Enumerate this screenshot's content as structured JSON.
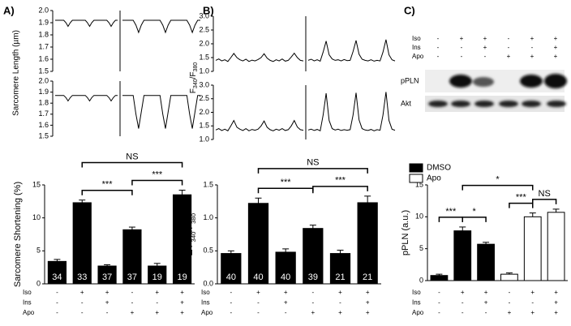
{
  "panels": [
    "A)",
    "B)",
    "C)"
  ],
  "conditions": [
    {
      "label": "Iso",
      "marks": [
        "-",
        "+",
        "+",
        "-",
        "+",
        "+"
      ]
    },
    {
      "label": "Ins",
      "marks": [
        "-",
        "-",
        "+",
        "-",
        "-",
        "+"
      ]
    },
    {
      "label": "Apo",
      "marks": [
        "-",
        "-",
        "-",
        "+",
        "+",
        "+"
      ]
    }
  ],
  "blot": {
    "labels": [
      "pPLN",
      "Akt"
    ]
  },
  "chart_data": [
    {
      "type": "line",
      "ylabel": "Sarcomere Length (µm)",
      "ylim": [
        1.5,
        2.0
      ],
      "yticks": [
        1.5,
        1.6,
        1.7,
        1.8,
        1.9,
        {
          "value": 2.0,
          "label": "2.0"
        }
      ],
      "series": [
        {
          "color": "#000000",
          "values": [
            1.92,
            1.92,
            1.92,
            1.92,
            1.92,
            1.9,
            1.87,
            1.9,
            1.92,
            1.92,
            1.92,
            1.92,
            1.92,
            1.92,
            1.92,
            1.9,
            1.87,
            1.9,
            1.92,
            1.92,
            1.92,
            1.92,
            1.92,
            1.92,
            1.92,
            1.9,
            1.87,
            1.9,
            1.92,
            1.92
          ]
        },
        {
          "color": "#000000",
          "values": [
            1.92,
            1.92,
            1.92,
            1.92,
            1.92,
            1.88,
            1.82,
            1.88,
            1.92,
            1.92,
            1.92,
            1.92,
            1.92,
            1.92,
            1.92,
            1.88,
            1.82,
            1.88,
            1.92,
            1.92,
            1.92,
            1.92,
            1.92,
            1.92,
            1.92,
            1.88,
            1.82,
            1.88,
            1.92,
            1.92
          ]
        }
      ]
    },
    {
      "type": "line",
      "ylim": [
        1.5,
        2.0
      ],
      "yticks": [
        1.5,
        1.6,
        1.7,
        1.8,
        1.9,
        {
          "value": 2.0,
          "label": "2.0"
        }
      ],
      "series": [
        {
          "color": "#000000",
          "values": [
            1.87,
            1.87,
            1.87,
            1.87,
            1.87,
            1.85,
            1.82,
            1.85,
            1.87,
            1.87,
            1.87,
            1.87,
            1.87,
            1.87,
            1.87,
            1.85,
            1.82,
            1.85,
            1.87,
            1.87,
            1.87,
            1.87,
            1.87,
            1.87,
            1.87,
            1.85,
            1.82,
            1.85,
            1.87,
            1.87
          ]
        },
        {
          "color": "#000000",
          "values": [
            1.87,
            1.87,
            1.87,
            1.87,
            1.87,
            1.7,
            1.57,
            1.72,
            1.87,
            1.87,
            1.87,
            1.87,
            1.87,
            1.87,
            1.87,
            1.7,
            1.57,
            1.72,
            1.87,
            1.87,
            1.87,
            1.87,
            1.87,
            1.87,
            1.87,
            1.7,
            1.57,
            1.72,
            1.87,
            1.87
          ]
        }
      ]
    },
    {
      "type": "line",
      "ylabel_parts": [
        "F",
        "340",
        "/F",
        "380"
      ],
      "ylim": [
        1.0,
        3.0
      ],
      "yticks": [
        {
          "value": 1.0,
          "label": "1.0"
        },
        1.5,
        {
          "value": 2.0,
          "label": "2.0"
        },
        2.5,
        {
          "value": 3.0,
          "label": "3.0"
        }
      ],
      "series": [
        {
          "color": "#000000",
          "values": [
            1.4,
            1.45,
            1.38,
            1.42,
            1.36,
            1.5,
            1.65,
            1.5,
            1.42,
            1.38,
            1.44,
            1.36,
            1.41,
            1.38,
            1.43,
            1.5,
            1.64,
            1.48,
            1.4,
            1.36,
            1.42,
            1.38,
            1.45,
            1.37,
            1.4,
            1.52,
            1.66,
            1.5,
            1.4,
            1.38
          ]
        },
        {
          "color": "#000000",
          "values": [
            1.4,
            1.44,
            1.38,
            1.42,
            1.37,
            1.7,
            2.1,
            1.6,
            1.45,
            1.4,
            1.42,
            1.38,
            1.43,
            1.39,
            1.4,
            1.72,
            2.12,
            1.62,
            1.44,
            1.4,
            1.38,
            1.42,
            1.37,
            1.4,
            1.38,
            1.7,
            2.15,
            1.6,
            1.42,
            1.38
          ]
        }
      ]
    },
    {
      "type": "line",
      "ylim": [
        1.0,
        3.0
      ],
      "yticks": [
        {
          "value": 1.0,
          "label": "1.0"
        },
        1.5,
        {
          "value": 2.0,
          "label": "2.0"
        },
        2.5,
        {
          "value": 3.0,
          "label": "3.0"
        }
      ],
      "series": [
        {
          "color": "#000000",
          "values": [
            1.35,
            1.4,
            1.33,
            1.38,
            1.32,
            1.5,
            1.7,
            1.45,
            1.38,
            1.33,
            1.4,
            1.32,
            1.37,
            1.34,
            1.38,
            1.5,
            1.68,
            1.45,
            1.36,
            1.32,
            1.38,
            1.34,
            1.4,
            1.33,
            1.36,
            1.5,
            1.7,
            1.46,
            1.36,
            1.34
          ]
        },
        {
          "color": "#000000",
          "values": [
            1.35,
            1.38,
            1.33,
            1.37,
            1.32,
            1.9,
            2.7,
            1.7,
            1.4,
            1.35,
            1.38,
            1.33,
            1.36,
            1.34,
            1.36,
            1.9,
            2.72,
            1.72,
            1.4,
            1.35,
            1.33,
            1.37,
            1.32,
            1.36,
            1.34,
            1.9,
            2.75,
            1.7,
            1.38,
            1.34
          ]
        }
      ]
    },
    {
      "type": "bar",
      "ylabel": "Sarcomere Shortening (%)",
      "ylim": [
        0,
        15
      ],
      "yticks": [
        0,
        5,
        10,
        15
      ],
      "color": "#000000",
      "values": [
        3.4,
        12.3,
        2.7,
        8.2,
        2.7,
        13.5
      ],
      "errors": [
        0.3,
        0.4,
        0.2,
        0.4,
        0.4,
        0.7
      ],
      "n": [
        34,
        33,
        37,
        37,
        19,
        19
      ],
      "brackets": [
        {
          "between": [
            1,
            3
          ],
          "label": "***"
        },
        {
          "between": [
            3,
            5
          ],
          "label": "***"
        },
        {
          "between": [
            1,
            5
          ],
          "label": "NS"
        }
      ]
    },
    {
      "type": "bar",
      "ylabel_parts": [
        "Δ F",
        "340",
        "/F",
        "380"
      ],
      "ylim": [
        0,
        1.5
      ],
      "yticks": [
        {
          "value": 0,
          "label": "0.0"
        },
        0.5,
        {
          "value": 1.0,
          "label": "1.0"
        },
        1.5
      ],
      "color": "#000000",
      "values": [
        0.46,
        1.22,
        0.48,
        0.84,
        0.46,
        1.23
      ],
      "errors": [
        0.04,
        0.08,
        0.05,
        0.05,
        0.05,
        0.1
      ],
      "n": [
        40,
        40,
        40,
        39,
        21,
        21
      ],
      "brackets": [
        {
          "between": [
            1,
            3
          ],
          "label": "***"
        },
        {
          "between": [
            3,
            5
          ],
          "label": "***"
        },
        {
          "between": [
            1,
            5
          ],
          "label": "NS"
        }
      ]
    },
    {
      "type": "bar",
      "ylabel": "pPLN (a.u.)",
      "ylim": [
        0,
        15
      ],
      "yticks": [
        0,
        5,
        10,
        15
      ],
      "series": [
        {
          "name": "DMSO",
          "color": "#000000",
          "values": [
            0.8,
            7.8,
            5.7,
            null,
            null,
            null
          ],
          "errors": [
            0.2,
            0.6,
            0.3,
            null,
            null,
            null
          ]
        },
        {
          "name": "Apo",
          "color": "#ffffff",
          "values": [
            null,
            null,
            null,
            1.0,
            10.0,
            10.7
          ],
          "errors": [
            null,
            null,
            null,
            0.2,
            0.6,
            0.5
          ]
        }
      ],
      "brackets": [
        {
          "between": [
            0,
            1
          ],
          "label": "***"
        },
        {
          "between": [
            1,
            2
          ],
          "label": "*"
        },
        {
          "between": [
            3,
            4
          ],
          "label": "***"
        },
        {
          "between": [
            4,
            5
          ],
          "label": "NS"
        },
        {
          "between": [
            1,
            4
          ],
          "label": "*"
        }
      ]
    }
  ]
}
